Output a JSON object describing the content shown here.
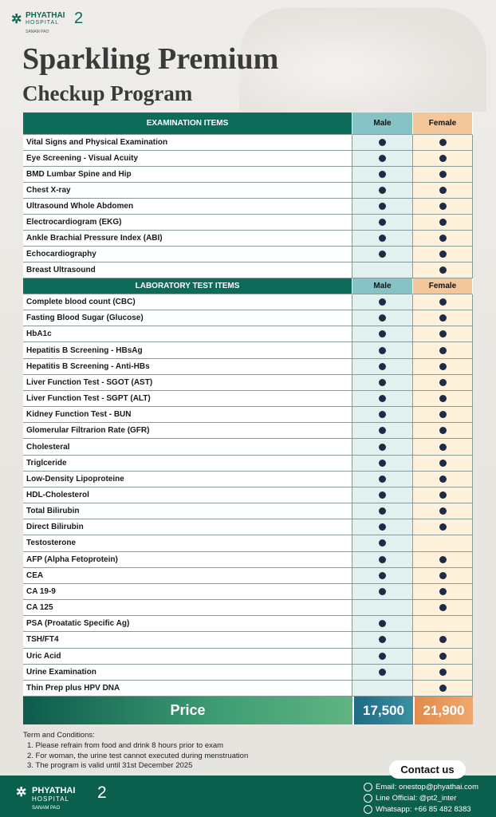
{
  "header": {
    "logo_name": "PHYATHAI",
    "logo_sub": "HOSPITAL",
    "logo_num": "2",
    "logo_branch": "SANAM PAO",
    "title_line1": "Sparkling Premium",
    "title_line2": "Checkup Program"
  },
  "table": {
    "sections": [
      {
        "header": [
          "EXAMINATION ITEMS",
          "Male",
          "Female"
        ],
        "rows": [
          [
            "Vital Signs and Physical Examination",
            true,
            true
          ],
          [
            "Eye Screening - Visual Acuity",
            true,
            true
          ],
          [
            "BMD Lumbar Spine and Hip",
            true,
            true
          ],
          [
            "Chest X-ray",
            true,
            true
          ],
          [
            "Ultrasound Whole Abdomen",
            true,
            true
          ],
          [
            "Electrocardiogram (EKG)",
            true,
            true
          ],
          [
            "Ankle Brachial Pressure Index (ABI)",
            true,
            true
          ],
          [
            "Echocardiography",
            true,
            true
          ],
          [
            "Breast Ultrasound",
            false,
            true
          ]
        ]
      },
      {
        "header": [
          "LABORATORY TEST ITEMS",
          "Male",
          "Female"
        ],
        "rows": [
          [
            "Complete blood count (CBC)",
            true,
            true
          ],
          [
            "Fasting Blood Sugar (Glucose)",
            true,
            true
          ],
          [
            "HbA1c",
            true,
            true
          ],
          [
            "Hepatitis B Screening - HBsAg",
            true,
            true
          ],
          [
            "Hepatitis B Screening - Anti-HBs",
            true,
            true
          ],
          [
            "Liver Function Test - SGOT (AST)",
            true,
            true
          ],
          [
            "Liver Function Test - SGPT (ALT)",
            true,
            true
          ],
          [
            "Kidney Function Test - BUN",
            true,
            true
          ],
          [
            "Glomerular Filtrarion Rate (GFR)",
            true,
            true
          ],
          [
            "Cholesteral",
            true,
            true
          ],
          [
            "Triglceride",
            true,
            true
          ],
          [
            "Low-Density Lipoproteine",
            true,
            true
          ],
          [
            "HDL-Cholesterol",
            true,
            true
          ],
          [
            "Total Bilirubin",
            true,
            true
          ],
          [
            "Direct Bilirubin",
            true,
            true
          ],
          [
            "Testosterone",
            true,
            false
          ],
          [
            "AFP (Alpha Fetoprotein)",
            true,
            true
          ],
          [
            "CEA",
            true,
            true
          ],
          [
            "CA 19-9",
            true,
            true
          ],
          [
            "CA 125",
            false,
            true
          ],
          [
            "PSA (Proatatic Specific Ag)",
            true,
            false
          ],
          [
            "TSH/FT4",
            true,
            true
          ],
          [
            "Uric Acid",
            true,
            true
          ],
          [
            "Urine Examination",
            true,
            true
          ],
          [
            "Thin Prep plus HPV DNA",
            false,
            true
          ]
        ]
      }
    ],
    "price": {
      "label": "Price",
      "male": "17,500",
      "female": "21,900"
    }
  },
  "terms": {
    "title": "Term and Conditions:",
    "items": [
      "1. Please refrain from food and drink 8 hours prior to exam",
      "2. For woman, the urine test cannot executed during menstruation",
      "3. The program is valid until 31st December 2025"
    ]
  },
  "footer": {
    "contact_button": "Contact us",
    "email": "Email: onestop@phyathai.com",
    "line": "Line Official: @pt2_inter",
    "whatsapp": "Whatsapp: +66 85 482 8383"
  }
}
